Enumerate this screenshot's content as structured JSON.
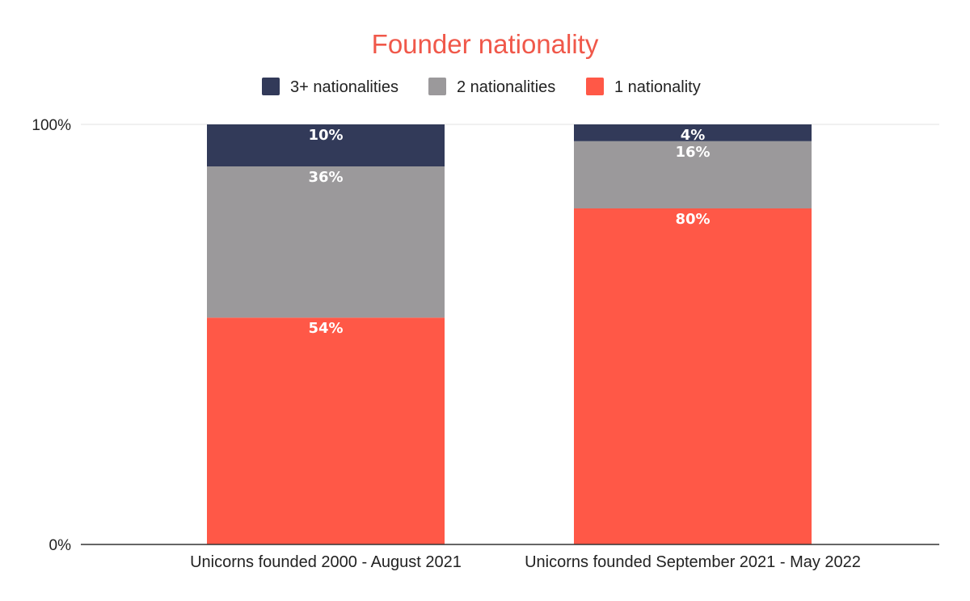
{
  "chart_data": {
    "type": "bar",
    "stacked": true,
    "normalized": true,
    "title": "Founder nationality",
    "title_color": "#f0584a",
    "categories": [
      "Unicorns founded 2000 - August 2021",
      "Unicorns founded September 2021 - May 2022"
    ],
    "series": [
      {
        "name": "1 nationality",
        "color": "#ff5847",
        "values": [
          54,
          80
        ],
        "labels": [
          "54%",
          "80%"
        ]
      },
      {
        "name": "2 nationalities",
        "color": "#9b999b",
        "values": [
          36,
          16
        ],
        "labels": [
          "36%",
          "16%"
        ]
      },
      {
        "name": "3+ nationalities",
        "color": "#323a59",
        "values": [
          10,
          4
        ],
        "labels": [
          "10%",
          "4%"
        ]
      }
    ],
    "legend_order": [
      "3+ nationalities",
      "2 nationalities",
      "1 nationality"
    ],
    "legend_position": "top",
    "ylim": [
      0,
      100
    ],
    "yticks": [
      "0%",
      "100%"
    ],
    "xlabel": "",
    "ylabel": ""
  }
}
